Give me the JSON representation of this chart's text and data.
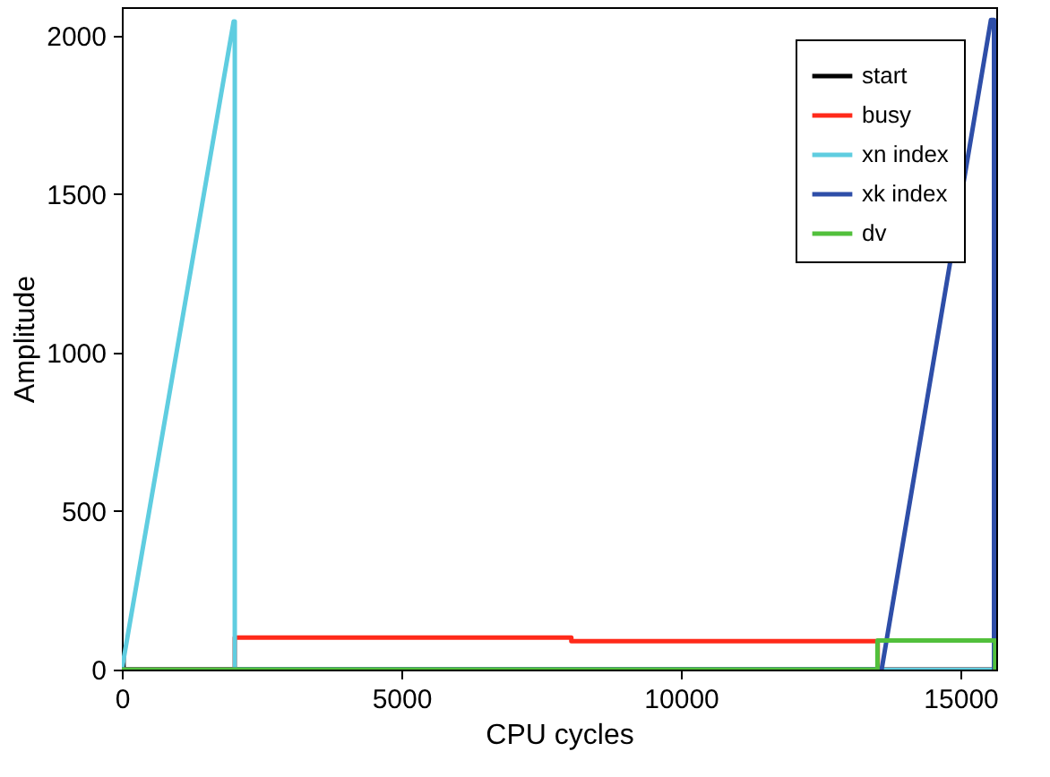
{
  "chart_data": {
    "type": "line",
    "xlabel": "CPU cycles",
    "ylabel": "Amplitude",
    "xlim": [
      0,
      15640
    ],
    "ylim": [
      0,
      2090
    ],
    "xticks": [
      0,
      5000,
      10000,
      15000
    ],
    "yticks": [
      0,
      500,
      1000,
      1500,
      2000
    ],
    "grid": false,
    "legend": "top right",
    "line_style": "solid",
    "marker": "none",
    "series": [
      {
        "name": "start",
        "color": "#000000",
        "x": [
          0,
          0,
          30,
          30,
          15640
        ],
        "values": [
          0,
          70,
          70,
          0,
          0
        ]
      },
      {
        "name": "busy",
        "color": "#ff2a1a",
        "x": [
          0,
          2020,
          2020,
          8040,
          8040,
          13520,
          13520,
          15640
        ],
        "values": [
          0,
          0,
          101,
          101,
          90,
          90,
          0,
          0
        ]
      },
      {
        "name": "xn index",
        "color": "#5fcde0",
        "x": [
          0,
          2000,
          2020,
          2020,
          15640
        ],
        "values": [
          0,
          2045,
          2045,
          0,
          0
        ]
      },
      {
        "name": "xk index",
        "color": "#2e4ea8",
        "x": [
          0,
          13590,
          15545,
          15600,
          15600,
          15640
        ],
        "values": [
          0,
          0,
          2050,
          2050,
          0,
          0
        ]
      },
      {
        "name": "dv",
        "color": "#52c03c",
        "x": [
          0,
          13515,
          13515,
          15620,
          15620,
          15640
        ],
        "values": [
          0,
          0,
          92,
          92,
          0,
          0
        ]
      }
    ]
  }
}
